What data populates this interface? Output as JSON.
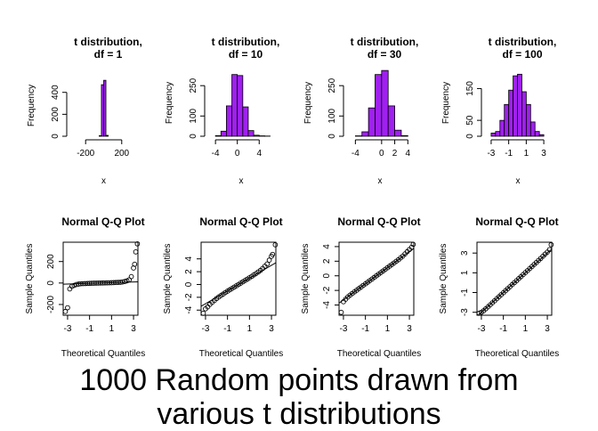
{
  "caption": {
    "line1": "1000 Random points drawn from",
    "line2": "various t distributions"
  },
  "colors": {
    "bar_fill": "#a020f0",
    "axis": "#000000",
    "points": "#000000"
  },
  "chart_data": [
    {
      "type": "bar",
      "title_line1": "t distribution,",
      "title_line2": "df = 1",
      "xlabel": "x",
      "ylabel": "Frequency",
      "xlim": [
        -350,
        350
      ],
      "ylim": [
        0,
        560
      ],
      "xticks": [
        -200,
        200
      ],
      "yticks": [
        0,
        200,
        400
      ],
      "bins": [
        {
          "x0": -50,
          "x1": -25,
          "count": 5
        },
        {
          "x0": -25,
          "x1": 0,
          "count": 470
        },
        {
          "x0": 0,
          "x1": 25,
          "count": 510
        },
        {
          "x0": 25,
          "x1": 50,
          "count": 8
        }
      ]
    },
    {
      "type": "bar",
      "title_line1": "t distribution,",
      "title_line2": "df = 10",
      "xlabel": "x",
      "ylabel": "Frequency",
      "xlim": [
        -5,
        6.4
      ],
      "ylim": [
        0,
        330
      ],
      "xticks": [
        -4,
        0,
        4
      ],
      "yticks": [
        0,
        100,
        250
      ],
      "bins": [
        {
          "x0": -4,
          "x1": -3,
          "count": 3
        },
        {
          "x0": -3,
          "x1": -2,
          "count": 25
        },
        {
          "x0": -2,
          "x1": -1,
          "count": 150
        },
        {
          "x0": -1,
          "x1": 0,
          "count": 305
        },
        {
          "x0": 0,
          "x1": 1,
          "count": 300
        },
        {
          "x0": 1,
          "x1": 2,
          "count": 145
        },
        {
          "x0": 2,
          "x1": 3,
          "count": 28
        },
        {
          "x0": 3,
          "x1": 4,
          "count": 5
        },
        {
          "x0": 4,
          "x1": 5,
          "count": 2
        },
        {
          "x0": 5,
          "x1": 6,
          "count": 1
        }
      ]
    },
    {
      "type": "bar",
      "title_line1": "t distribution,",
      "title_line2": "df = 30",
      "xlabel": "x",
      "ylabel": "Frequency",
      "xlim": [
        -5,
        4.5
      ],
      "ylim": [
        0,
        330
      ],
      "xticks": [
        -4,
        0,
        2,
        4
      ],
      "yticks": [
        0,
        100,
        250
      ],
      "bins": [
        {
          "x0": -4,
          "x1": -3,
          "count": 2
        },
        {
          "x0": -3,
          "x1": -2,
          "count": 22
        },
        {
          "x0": -2,
          "x1": -1,
          "count": 140
        },
        {
          "x0": -1,
          "x1": 0,
          "count": 305
        },
        {
          "x0": 0,
          "x1": 1,
          "count": 325
        },
        {
          "x0": 1,
          "x1": 2,
          "count": 150
        },
        {
          "x0": 2,
          "x1": 3,
          "count": 30
        },
        {
          "x0": 3,
          "x1": 4,
          "count": 3
        }
      ]
    },
    {
      "type": "bar",
      "title_line1": "t distribution,",
      "title_line2": "df = 100",
      "xlabel": "x",
      "ylabel": "Frequency",
      "xlim": [
        -3.5,
        3.6
      ],
      "ylim": [
        0,
        210
      ],
      "xticks": [
        -3,
        -1,
        1,
        3
      ],
      "yticks": [
        0,
        50,
        150
      ],
      "bins": [
        {
          "x0": -3,
          "x1": -2.5,
          "count": 10
        },
        {
          "x0": -2.5,
          "x1": -2,
          "count": 15
        },
        {
          "x0": -2,
          "x1": -1.5,
          "count": 50
        },
        {
          "x0": -1.5,
          "x1": -1,
          "count": 100
        },
        {
          "x0": -1,
          "x1": -0.5,
          "count": 145
        },
        {
          "x0": -0.5,
          "x1": 0,
          "count": 190
        },
        {
          "x0": 0,
          "x1": 0.5,
          "count": 195
        },
        {
          "x0": 0.5,
          "x1": 1,
          "count": 140
        },
        {
          "x0": 1,
          "x1": 1.5,
          "count": 100
        },
        {
          "x0": 1.5,
          "x1": 2,
          "count": 45
        },
        {
          "x0": 2,
          "x1": 2.5,
          "count": 15
        },
        {
          "x0": 2.5,
          "x1": 3,
          "count": 5
        }
      ]
    },
    {
      "type": "scatter",
      "title": "Normal Q-Q Plot",
      "xlabel": "Theoretical Quantiles",
      "ylabel": "Sample Quantiles",
      "xlim": [
        -3.4,
        3.4
      ],
      "ylim": [
        -300,
        380
      ],
      "xticks": [
        -3,
        -1,
        1,
        3
      ],
      "yticks": [
        -200,
        0,
        200
      ],
      "reference_line": {
        "slope": 3.2,
        "intercept": 0
      },
      "points": [
        [
          -3.2,
          -265
        ],
        [
          -3.0,
          -230
        ],
        [
          -2.8,
          -55
        ],
        [
          -2.6,
          -30
        ],
        [
          -2.4,
          -22
        ],
        [
          -2.2,
          -14
        ],
        [
          -2.0,
          -10
        ],
        [
          -1.8,
          -7
        ],
        [
          -1.6,
          -6
        ],
        [
          -1.4,
          -5
        ],
        [
          -1.2,
          -4
        ],
        [
          -1.0,
          -3
        ],
        [
          -0.8,
          -2
        ],
        [
          -0.6,
          -1.5
        ],
        [
          -0.4,
          -1
        ],
        [
          -0.2,
          -0.5
        ],
        [
          0,
          0
        ],
        [
          0.2,
          0.5
        ],
        [
          0.4,
          1
        ],
        [
          0.6,
          1.5
        ],
        [
          0.8,
          2
        ],
        [
          1.0,
          2.5
        ],
        [
          1.2,
          3.5
        ],
        [
          1.4,
          4.5
        ],
        [
          1.6,
          5.5
        ],
        [
          1.8,
          7
        ],
        [
          2.0,
          10
        ],
        [
          2.2,
          14
        ],
        [
          2.4,
          20
        ],
        [
          2.6,
          30
        ],
        [
          2.8,
          60
        ],
        [
          3.0,
          140
        ],
        [
          3.1,
          175
        ],
        [
          3.2,
          290
        ],
        [
          3.35,
          365
        ]
      ]
    },
    {
      "type": "scatter",
      "title": "Normal Q-Q Plot",
      "xlabel": "Theoretical Quantiles",
      "ylabel": "Sample Quantiles",
      "xlim": [
        -3.4,
        3.4
      ],
      "ylim": [
        -4.8,
        6.6
      ],
      "xticks": [
        -3,
        -1,
        1,
        3
      ],
      "yticks": [
        -4,
        -2,
        0,
        2,
        4
      ],
      "reference_line": {
        "slope": 1.0,
        "intercept": 0
      },
      "points": [
        [
          -3.2,
          -4.5
        ],
        [
          -3.0,
          -3.8
        ],
        [
          -2.8,
          -3.5
        ],
        [
          -2.6,
          -3.1
        ],
        [
          -2.4,
          -2.8
        ],
        [
          -2.2,
          -2.5
        ],
        [
          -2.0,
          -2.2
        ],
        [
          -1.8,
          -1.95
        ],
        [
          -1.6,
          -1.72
        ],
        [
          -1.4,
          -1.5
        ],
        [
          -1.2,
          -1.27
        ],
        [
          -1.0,
          -1.05
        ],
        [
          -0.8,
          -0.84
        ],
        [
          -0.6,
          -0.63
        ],
        [
          -0.4,
          -0.42
        ],
        [
          -0.2,
          -0.21
        ],
        [
          0,
          0
        ],
        [
          0.2,
          0.21
        ],
        [
          0.4,
          0.42
        ],
        [
          0.6,
          0.63
        ],
        [
          0.8,
          0.84
        ],
        [
          1.0,
          1.05
        ],
        [
          1.2,
          1.27
        ],
        [
          1.4,
          1.5
        ],
        [
          1.6,
          1.72
        ],
        [
          1.8,
          1.95
        ],
        [
          2.0,
          2.2
        ],
        [
          2.2,
          2.5
        ],
        [
          2.4,
          2.85
        ],
        [
          2.6,
          3.2
        ],
        [
          2.8,
          3.8
        ],
        [
          3.0,
          4.4
        ],
        [
          3.1,
          4.7
        ],
        [
          3.35,
          6.2
        ]
      ]
    },
    {
      "type": "scatter",
      "title": "Normal Q-Q Plot",
      "xlabel": "Theoretical Quantiles",
      "ylabel": "Sample Quantiles",
      "xlim": [
        -3.4,
        3.4
      ],
      "ylim": [
        -5.4,
        4.6
      ],
      "xticks": [
        -3,
        -1,
        1,
        3
      ],
      "yticks": [
        -4,
        -2,
        0,
        2,
        4
      ],
      "reference_line": {
        "slope": 1.1,
        "intercept": 0
      },
      "points": [
        [
          -3.2,
          -5.0
        ],
        [
          -3.0,
          -3.55
        ],
        [
          -2.8,
          -3.2
        ],
        [
          -2.6,
          -2.9
        ],
        [
          -2.4,
          -2.65
        ],
        [
          -2.2,
          -2.42
        ],
        [
          -2.0,
          -2.2
        ],
        [
          -1.8,
          -1.98
        ],
        [
          -1.6,
          -1.76
        ],
        [
          -1.4,
          -1.54
        ],
        [
          -1.2,
          -1.32
        ],
        [
          -1.0,
          -1.1
        ],
        [
          -0.8,
          -0.88
        ],
        [
          -0.6,
          -0.66
        ],
        [
          -0.4,
          -0.44
        ],
        [
          -0.2,
          -0.22
        ],
        [
          0,
          0
        ],
        [
          0.2,
          0.22
        ],
        [
          0.4,
          0.44
        ],
        [
          0.6,
          0.66
        ],
        [
          0.8,
          0.88
        ],
        [
          1.0,
          1.1
        ],
        [
          1.2,
          1.32
        ],
        [
          1.4,
          1.54
        ],
        [
          1.6,
          1.76
        ],
        [
          1.8,
          1.98
        ],
        [
          2.0,
          2.2
        ],
        [
          2.2,
          2.45
        ],
        [
          2.4,
          2.7
        ],
        [
          2.6,
          3.0
        ],
        [
          2.8,
          3.3
        ],
        [
          3.0,
          3.6
        ],
        [
          3.2,
          3.9
        ],
        [
          3.35,
          4.3
        ]
      ]
    },
    {
      "type": "scatter",
      "title": "Normal Q-Q Plot",
      "xlabel": "Theoretical Quantiles",
      "ylabel": "Sample Quantiles",
      "xlim": [
        -3.4,
        3.4
      ],
      "ylim": [
        -3.3,
        4.1
      ],
      "xticks": [
        -3,
        -1,
        1,
        3
      ],
      "yticks": [
        -3,
        -1,
        1,
        3
      ],
      "reference_line": {
        "slope": 1.0,
        "intercept": 0
      },
      "points": [
        [
          -3.2,
          -3.1
        ],
        [
          -3.0,
          -3.0
        ],
        [
          -2.8,
          -2.85
        ],
        [
          -2.6,
          -2.65
        ],
        [
          -2.4,
          -2.45
        ],
        [
          -2.2,
          -2.25
        ],
        [
          -2.0,
          -2.04
        ],
        [
          -1.8,
          -1.84
        ],
        [
          -1.6,
          -1.63
        ],
        [
          -1.4,
          -1.43
        ],
        [
          -1.2,
          -1.22
        ],
        [
          -1.0,
          -1.02
        ],
        [
          -0.8,
          -0.82
        ],
        [
          -0.6,
          -0.61
        ],
        [
          -0.4,
          -0.41
        ],
        [
          -0.2,
          -0.2
        ],
        [
          0,
          0
        ],
        [
          0.2,
          0.2
        ],
        [
          0.4,
          0.41
        ],
        [
          0.6,
          0.61
        ],
        [
          0.8,
          0.82
        ],
        [
          1.0,
          1.02
        ],
        [
          1.2,
          1.22
        ],
        [
          1.4,
          1.43
        ],
        [
          1.6,
          1.63
        ],
        [
          1.8,
          1.84
        ],
        [
          2.0,
          2.04
        ],
        [
          2.2,
          2.25
        ],
        [
          2.4,
          2.46
        ],
        [
          2.6,
          2.68
        ],
        [
          2.8,
          2.9
        ],
        [
          3.0,
          3.1
        ],
        [
          3.2,
          3.35
        ],
        [
          3.35,
          3.85
        ]
      ]
    }
  ]
}
